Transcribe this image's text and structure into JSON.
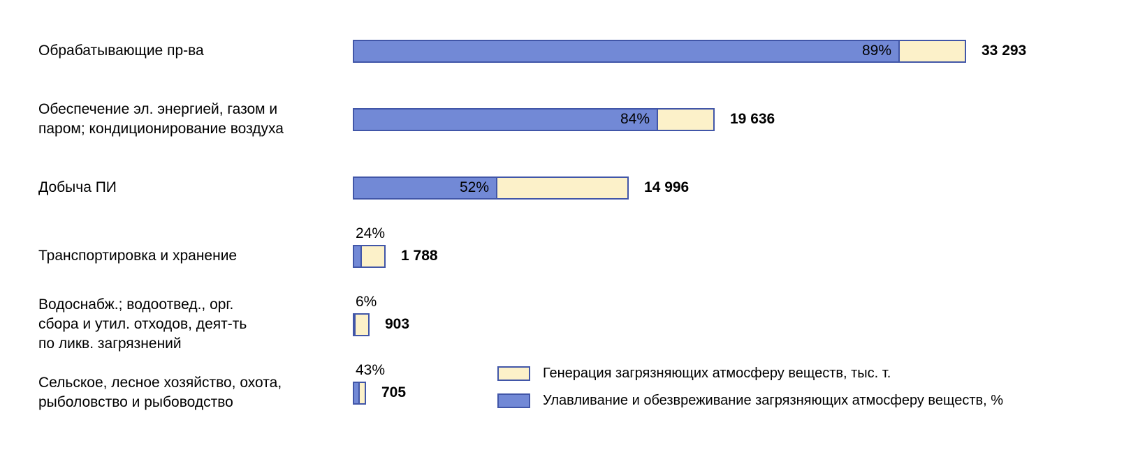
{
  "chart_data": {
    "type": "bar",
    "orientation": "horizontal",
    "title": "",
    "max_value": 33293,
    "legend_position": "bottom-right",
    "grid": false,
    "rows": [
      {
        "label_lines": [
          "Обрабатывающие пр-ва"
        ],
        "value": 33293,
        "value_label": "33 293",
        "percent": 89,
        "percent_label": "89%"
      },
      {
        "label_lines": [
          "Обеспечение эл. энергией, газом и",
          "паром; кондиционирование воздуха"
        ],
        "value": 19636,
        "value_label": "19 636",
        "percent": 84,
        "percent_label": "84%"
      },
      {
        "label_lines": [
          "Добыча ПИ"
        ],
        "value": 14996,
        "value_label": "14 996",
        "percent": 52,
        "percent_label": "52%"
      },
      {
        "label_lines": [
          "Транспортировка и хранение"
        ],
        "value": 1788,
        "value_label": "1 788",
        "percent": 24,
        "percent_label": "24%"
      },
      {
        "label_lines": [
          "Водоснабж.; водоотвед., орг.",
          "сбора и утил. отходов, деят-ть",
          "по ликв. загрязнений"
        ],
        "value": 903,
        "value_label": "903",
        "percent": 6,
        "percent_label": "6%"
      },
      {
        "label_lines": [
          "Сельское, лесное хозяйство, охота,",
          "рыболовство и рыбоводство"
        ],
        "value": 705,
        "value_label": "705",
        "percent": 43,
        "percent_label": "43%"
      }
    ],
    "legend": [
      {
        "label": "Генерация загрязняющих атмосферу веществ, тыс. т.",
        "color": "#FCF1C9"
      },
      {
        "label": "Улавливание и обезвреживание загрязняющих атмосферу веществ, %",
        "color": "#7289D6"
      }
    ],
    "colors": {
      "generation_fill": "#FCF1C9",
      "capture_fill": "#7289D6",
      "bar_border": "#4156A8",
      "text": "#000000",
      "background": "#FFFFFF"
    }
  }
}
